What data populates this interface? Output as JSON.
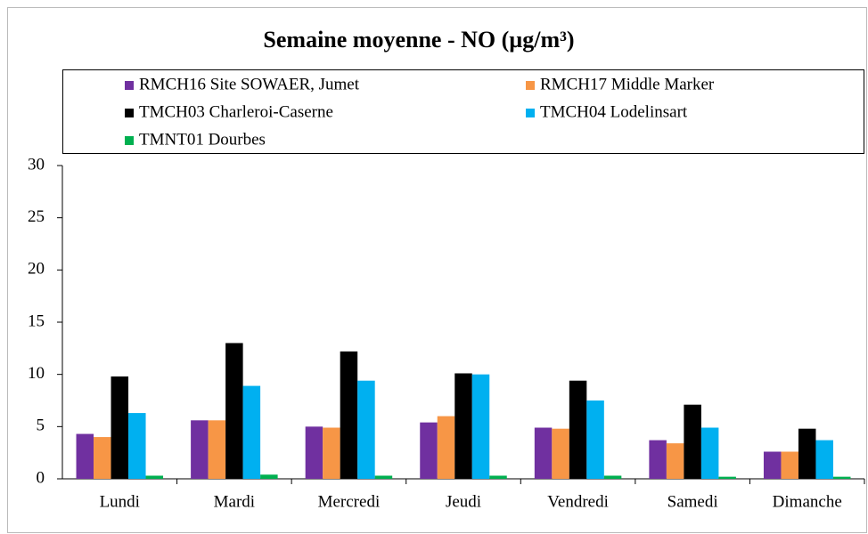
{
  "chart_data": {
    "type": "bar",
    "title": "Semaine moyenne - NO (µg/m³)",
    "categories": [
      "Lundi",
      "Mardi",
      "Mercredi",
      "Jeudi",
      "Vendredi",
      "Samedi",
      "Dimanche"
    ],
    "series": [
      {
        "name": "RMCH16 Site SOWAER, Jumet",
        "color": "#7030a0",
        "values": [
          4.3,
          5.6,
          5.0,
          5.4,
          4.9,
          3.7,
          2.6
        ]
      },
      {
        "name": "RMCH17 Middle Marker",
        "color": "#f79646",
        "values": [
          4.0,
          5.6,
          4.9,
          6.0,
          4.8,
          3.4,
          2.6
        ]
      },
      {
        "name": "TMCH03 Charleroi-Caserne",
        "color": "#000000",
        "values": [
          9.8,
          13.0,
          12.2,
          10.1,
          9.4,
          7.1,
          4.8
        ]
      },
      {
        "name": "TMCH04 Lodelinsart",
        "color": "#00b0f0",
        "values": [
          6.3,
          8.9,
          9.4,
          10.0,
          7.5,
          4.9,
          3.7
        ]
      },
      {
        "name": "TMNT01 Dourbes",
        "color": "#00b050",
        "values": [
          0.3,
          0.4,
          0.3,
          0.3,
          0.3,
          0.2,
          0.2
        ]
      }
    ],
    "ylim": [
      0,
      30
    ],
    "yticks": [
      0,
      5,
      10,
      15,
      20,
      25,
      30
    ],
    "grid": false,
    "legend": "top"
  }
}
